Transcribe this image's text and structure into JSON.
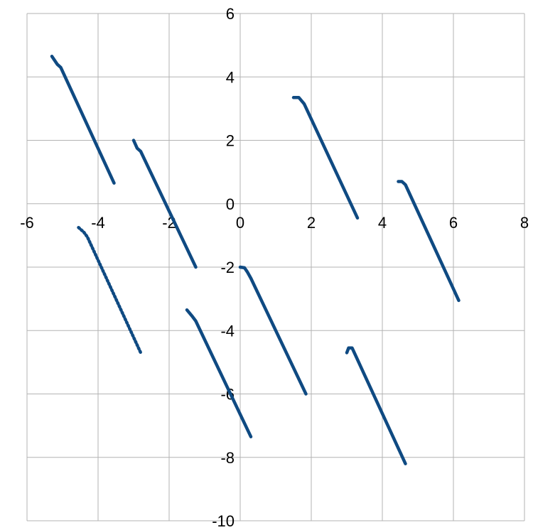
{
  "chart_data": {
    "type": "scatter",
    "title": "",
    "xlabel": "",
    "ylabel": "",
    "xlim": [
      -6,
      8
    ],
    "ylim": [
      -10,
      6
    ],
    "x_ticks": [
      -6,
      -4,
      -2,
      0,
      2,
      4,
      6,
      8
    ],
    "y_ticks": [
      -10,
      -8,
      -6,
      -4,
      -2,
      0,
      2,
      4,
      6
    ],
    "grid": true,
    "legend": "none",
    "series_color": "#0f4a82",
    "series": [
      {
        "points": [
          [
            -5.3,
            4.65
          ],
          [
            -5.15,
            4.4
          ],
          [
            -5.05,
            4.3
          ],
          [
            -3.55,
            0.65
          ]
        ]
      },
      {
        "points": [
          [
            -3.0,
            2.0
          ],
          [
            -2.9,
            1.75
          ],
          [
            -2.8,
            1.65
          ],
          [
            -1.25,
            -2.0
          ]
        ]
      },
      {
        "points": [
          [
            1.5,
            3.35
          ],
          [
            1.65,
            3.35
          ],
          [
            1.8,
            3.15
          ],
          [
            3.3,
            -0.45
          ]
        ]
      },
      {
        "points": [
          [
            4.45,
            0.7
          ],
          [
            4.55,
            0.7
          ],
          [
            4.65,
            0.6
          ],
          [
            6.15,
            -3.05
          ]
        ]
      },
      {
        "points": [
          [
            -1.5,
            -3.35
          ],
          [
            -1.35,
            -3.55
          ],
          [
            -1.25,
            -3.7
          ],
          [
            0.3,
            -7.35
          ]
        ]
      },
      {
        "points": [
          [
            0.0,
            -2.0
          ],
          [
            0.12,
            -2.02
          ],
          [
            0.2,
            -2.15
          ],
          [
            0.3,
            -2.35
          ],
          [
            1.85,
            -6.0
          ]
        ]
      },
      {
        "points": [
          [
            3.0,
            -4.7
          ],
          [
            3.05,
            -4.55
          ],
          [
            3.15,
            -4.55
          ],
          [
            4.65,
            -8.2
          ]
        ]
      },
      {
        "points": [
          [
            -4.55,
            -0.75
          ],
          [
            -4.4,
            -0.9
          ],
          [
            -4.3,
            -1.05
          ],
          [
            -2.8,
            -4.7
          ]
        ],
        "style": "dotted"
      }
    ]
  }
}
